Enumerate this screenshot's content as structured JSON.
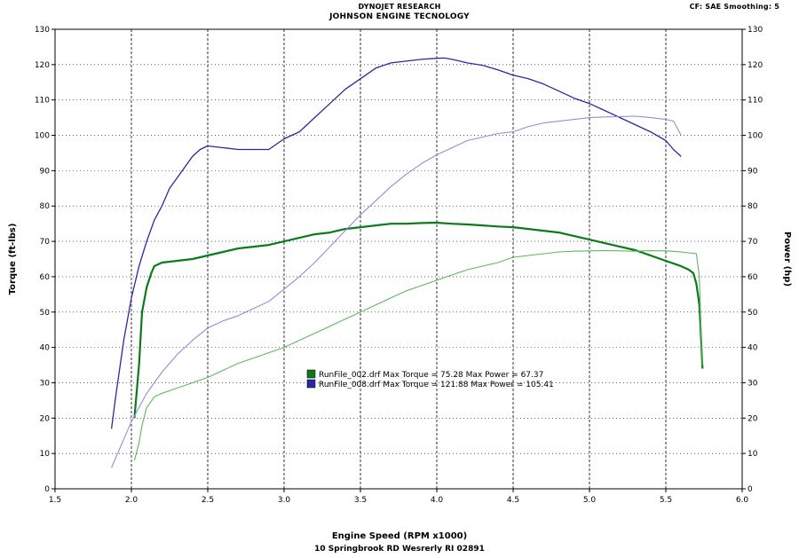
{
  "header": {
    "title": "DYNOJET RESEARCH",
    "subtitle": "JOHNSON ENGINE TECNOLOGY",
    "settings": "CF: SAE  Smoothing: 5"
  },
  "footer": "10 Springbrook RD Wesrerly RI 02891",
  "colors": {
    "run002_torque": "#0d7a1a",
    "run002_power": "#5cb85c",
    "run008_torque": "#2a2aa0",
    "run008_power": "#8f8fd6",
    "grid": "#000000"
  },
  "chart_data": {
    "type": "line",
    "xlabel": "Engine Speed (RPM x1000)",
    "ylabel_left": "Torque (ft-lbs)",
    "ylabel_right": "Power (hp)",
    "xlim": [
      1.5,
      6.0
    ],
    "ylim": [
      0,
      130
    ],
    "x_ticks": [
      "1.5",
      "2.0",
      "2.5",
      "3.0",
      "3.5",
      "4.0",
      "4.5",
      "5.0",
      "5.5",
      "6.0"
    ],
    "y_ticks": [
      "0",
      "10",
      "20",
      "30",
      "40",
      "50",
      "60",
      "70",
      "80",
      "90",
      "100",
      "110",
      "120",
      "130"
    ],
    "grid": true,
    "grid_style": "dashed-vertical, dotted-horizontal",
    "legend_position": "center",
    "legend": [
      {
        "text": "RunFile_002.drf Max Torque = 75.28     Max Power = 67.37",
        "color": "#0d7a1a"
      },
      {
        "text": "RunFile_008.drf Max Torque = 121.88     Max Power = 105.41",
        "color": "#2a2aa0"
      }
    ],
    "series": [
      {
        "run": "RunFile_002.drf",
        "measure": "torque",
        "x": [
          2.02,
          2.05,
          2.07,
          2.1,
          2.13,
          2.15,
          2.2,
          2.3,
          2.4,
          2.5,
          2.6,
          2.7,
          2.8,
          2.9,
          3.0,
          3.1,
          3.2,
          3.3,
          3.4,
          3.5,
          3.6,
          3.7,
          3.8,
          3.9,
          4.0,
          4.1,
          4.2,
          4.3,
          4.4,
          4.5,
          4.6,
          4.7,
          4.8,
          4.9,
          5.0,
          5.1,
          5.2,
          5.3,
          5.4,
          5.5,
          5.6,
          5.65,
          5.68,
          5.7,
          5.72,
          5.73,
          5.74
        ],
        "y": [
          20,
          35,
          50,
          57,
          61,
          63,
          64,
          64.5,
          65,
          66,
          67,
          68,
          68.5,
          69,
          70,
          71,
          72,
          72.5,
          73.5,
          74,
          74.5,
          75,
          75,
          75.2,
          75.3,
          75,
          74.8,
          74.5,
          74.2,
          74,
          73.5,
          73,
          72.5,
          71.5,
          70.5,
          69.5,
          68.5,
          67.5,
          66,
          64.5,
          63,
          62,
          61,
          58,
          52,
          43,
          34
        ]
      },
      {
        "run": "RunFile_002.drf",
        "measure": "power",
        "x": [
          2.02,
          2.05,
          2.07,
          2.1,
          2.15,
          2.2,
          2.3,
          2.4,
          2.5,
          2.6,
          2.7,
          2.8,
          2.9,
          3.0,
          3.1,
          3.2,
          3.3,
          3.4,
          3.5,
          3.6,
          3.7,
          3.8,
          3.9,
          4.0,
          4.1,
          4.2,
          4.3,
          4.4,
          4.5,
          4.6,
          4.7,
          4.8,
          4.9,
          5.0,
          5.1,
          5.2,
          5.3,
          5.4,
          5.5,
          5.6,
          5.7,
          5.72,
          5.73,
          5.74
        ],
        "y": [
          8,
          13,
          18,
          23,
          26,
          27,
          28.5,
          30,
          31.5,
          33.5,
          35.5,
          37,
          38.5,
          40,
          42,
          44,
          46,
          48,
          50,
          52,
          54,
          56,
          57.5,
          59,
          60.5,
          62,
          63,
          64,
          65.5,
          66,
          66.5,
          67,
          67.2,
          67.3,
          67.4,
          67.3,
          67.2,
          67.37,
          67.3,
          67,
          66.5,
          60,
          45,
          35
        ]
      },
      {
        "run": "RunFile_008.drf",
        "measure": "torque",
        "x": [
          1.87,
          1.9,
          1.95,
          2.0,
          2.05,
          2.1,
          2.15,
          2.2,
          2.25,
          2.3,
          2.35,
          2.4,
          2.45,
          2.5,
          2.6,
          2.7,
          2.8,
          2.9,
          3.0,
          3.1,
          3.2,
          3.3,
          3.4,
          3.5,
          3.6,
          3.7,
          3.8,
          3.9,
          4.0,
          4.05,
          4.1,
          4.2,
          4.3,
          4.4,
          4.5,
          4.6,
          4.7,
          4.8,
          4.9,
          5.0,
          5.1,
          5.2,
          5.3,
          5.4,
          5.5,
          5.55,
          5.6
        ],
        "y": [
          17,
          27,
          42,
          54,
          63,
          70,
          76,
          80,
          85,
          88,
          91,
          94,
          96,
          97,
          96.5,
          96,
          96,
          96,
          99,
          101,
          105,
          109,
          113,
          116,
          119,
          120.5,
          121,
          121.5,
          121.8,
          121.88,
          121.5,
          120.5,
          119.8,
          118.5,
          117,
          116,
          114.5,
          112.5,
          110.5,
          109,
          107,
          105,
          103,
          101,
          98.5,
          96,
          94
        ]
      },
      {
        "run": "RunFile_008.drf",
        "measure": "power",
        "x": [
          1.87,
          1.9,
          1.95,
          2.0,
          2.05,
          2.1,
          2.2,
          2.3,
          2.4,
          2.5,
          2.6,
          2.7,
          2.8,
          2.9,
          3.0,
          3.1,
          3.2,
          3.3,
          3.4,
          3.5,
          3.6,
          3.7,
          3.8,
          3.9,
          4.0,
          4.1,
          4.2,
          4.3,
          4.4,
          4.5,
          4.6,
          4.7,
          4.8,
          4.9,
          5.0,
          5.1,
          5.2,
          5.3,
          5.4,
          5.5,
          5.55,
          5.6
        ],
        "y": [
          6,
          9,
          14,
          19,
          23,
          27,
          33,
          38,
          42,
          45.5,
          47.5,
          49,
          51,
          53,
          56.5,
          60,
          64,
          68.5,
          73,
          77.5,
          81.5,
          85.5,
          89,
          92,
          94.5,
          96.5,
          98.5,
          99.5,
          100.5,
          101,
          102.5,
          103.5,
          104,
          104.5,
          105,
          105.2,
          105.3,
          105.41,
          105,
          104.5,
          104,
          100
        ]
      }
    ]
  }
}
